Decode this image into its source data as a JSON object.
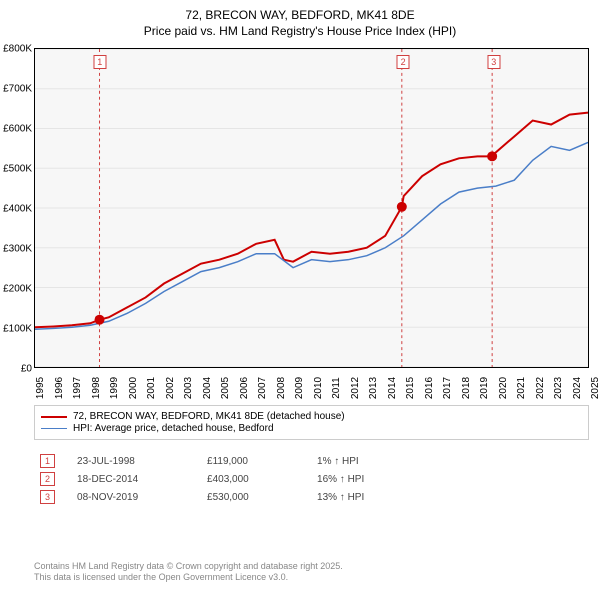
{
  "title": {
    "line1": "72, BRECON WAY, BEDFORD, MK41 8DE",
    "line2": "Price paid vs. HM Land Registry's House Price Index (HPI)"
  },
  "chart": {
    "type": "line",
    "background_color": "#f7f7f7",
    "border_color": "#000000",
    "xlim": [
      1995,
      2025
    ],
    "ylim": [
      0,
      800000
    ],
    "yticks": [
      0,
      100000,
      200000,
      300000,
      400000,
      500000,
      600000,
      700000,
      800000
    ],
    "ytick_labels": [
      "£0",
      "£100K",
      "£200K",
      "£300K",
      "£400K",
      "£500K",
      "£600K",
      "£700K",
      "£800K"
    ],
    "xticks": [
      1995,
      1996,
      1997,
      1998,
      1999,
      2000,
      2001,
      2002,
      2003,
      2004,
      2005,
      2006,
      2007,
      2008,
      2009,
      2010,
      2011,
      2012,
      2013,
      2014,
      2015,
      2016,
      2017,
      2018,
      2019,
      2020,
      2021,
      2022,
      2023,
      2024,
      2025
    ],
    "label_fontsize": 10,
    "series": [
      {
        "name": "72, BRECON WAY, BEDFORD, MK41 8DE (detached house)",
        "color": "#cc0000",
        "line_width": 2,
        "x": [
          1995,
          1996,
          1997,
          1998,
          1998.5,
          1999,
          2000,
          2001,
          2002,
          2003,
          2004,
          2005,
          2006,
          2007,
          2008,
          2008.5,
          2009,
          2010,
          2011,
          2012,
          2013,
          2014,
          2014.9,
          2015,
          2016,
          2017,
          2018,
          2019,
          2019.8,
          2020,
          2021,
          2022,
          2023,
          2024,
          2025
        ],
        "y": [
          100000,
          102000,
          105000,
          110000,
          119000,
          125000,
          150000,
          175000,
          210000,
          235000,
          260000,
          270000,
          285000,
          310000,
          320000,
          270000,
          265000,
          290000,
          285000,
          290000,
          300000,
          330000,
          403000,
          430000,
          480000,
          510000,
          525000,
          530000,
          530000,
          540000,
          580000,
          620000,
          610000,
          635000,
          640000
        ]
      },
      {
        "name": "HPI: Average price, detached house, Bedford",
        "color": "#4a7ec8",
        "line_width": 1.5,
        "x": [
          1995,
          1996,
          1997,
          1998,
          1999,
          2000,
          2001,
          2002,
          2003,
          2004,
          2005,
          2006,
          2007,
          2008,
          2009,
          2010,
          2011,
          2012,
          2013,
          2014,
          2015,
          2016,
          2017,
          2018,
          2019,
          2020,
          2021,
          2022,
          2023,
          2024,
          2025
        ],
        "y": [
          95000,
          97000,
          100000,
          105000,
          115000,
          135000,
          160000,
          190000,
          215000,
          240000,
          250000,
          265000,
          285000,
          285000,
          250000,
          270000,
          265000,
          270000,
          280000,
          300000,
          330000,
          370000,
          410000,
          440000,
          450000,
          455000,
          470000,
          520000,
          555000,
          545000,
          565000
        ]
      }
    ],
    "markers": [
      {
        "x": 1998.5,
        "y": 119000,
        "color": "#cc0000",
        "size": 5
      },
      {
        "x": 2014.9,
        "y": 403000,
        "color": "#cc0000",
        "size": 5
      },
      {
        "x": 2019.8,
        "y": 530000,
        "color": "#cc0000",
        "size": 5
      }
    ],
    "vlines": [
      {
        "x": 1998.5,
        "label": "1",
        "color": "#d04040"
      },
      {
        "x": 2014.9,
        "label": "2",
        "color": "#d04040"
      },
      {
        "x": 2019.8,
        "label": "3",
        "color": "#d04040"
      }
    ]
  },
  "legend": {
    "items": [
      {
        "label": "72, BRECON WAY, BEDFORD, MK41 8DE (detached house)",
        "color": "#cc0000",
        "width": 2
      },
      {
        "label": "HPI: Average price, detached house, Bedford",
        "color": "#4a7ec8",
        "width": 1.5
      }
    ]
  },
  "transactions": [
    {
      "num": "1",
      "date": "23-JUL-1998",
      "price": "£119,000",
      "pct": "1% ↑ HPI"
    },
    {
      "num": "2",
      "date": "18-DEC-2014",
      "price": "£403,000",
      "pct": "16% ↑ HPI"
    },
    {
      "num": "3",
      "date": "08-NOV-2019",
      "price": "£530,000",
      "pct": "13% ↑ HPI"
    }
  ],
  "footer": {
    "line1": "Contains HM Land Registry data © Crown copyright and database right 2025.",
    "line2": "This data is licensed under the Open Government Licence v3.0."
  }
}
